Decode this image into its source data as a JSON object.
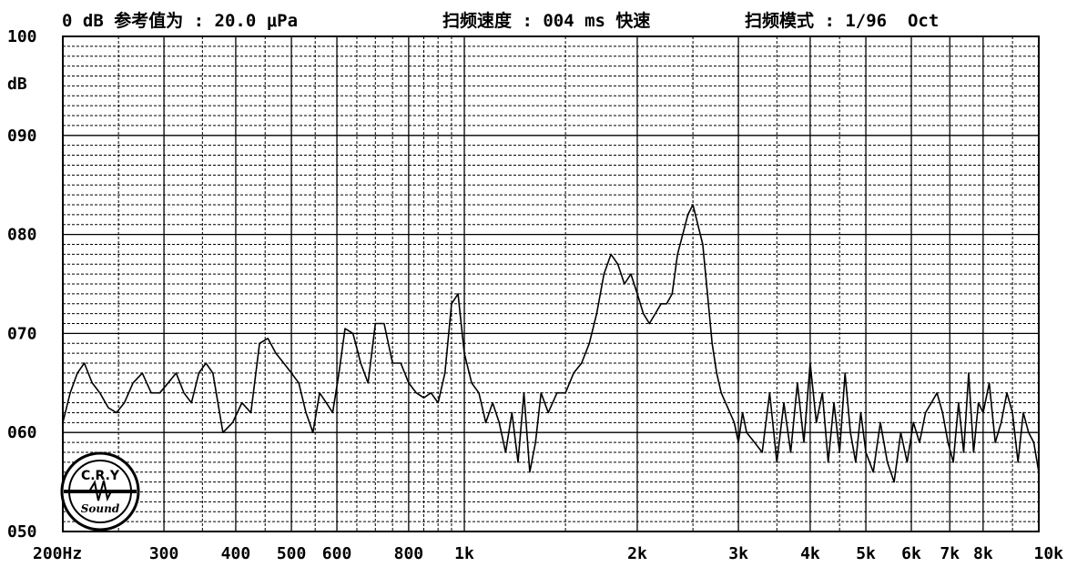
{
  "header": {
    "reference": "0 dB 参考值为 : 20.0 μPa",
    "sweep_speed": "扫频速度 : 004 ms 快速",
    "sweep_mode": "扫频模式 : 1/96  Oct"
  },
  "logo": {
    "top_text": "C.R.Y",
    "bottom_text": "Sound"
  },
  "colors": {
    "line": "#000000",
    "background": "#ffffff"
  },
  "chart_data": {
    "type": "line",
    "ylabel": "dB",
    "ylim": [
      50,
      100
    ],
    "y_ticks": [
      {
        "value": 100,
        "label": "100"
      },
      {
        "value": 90,
        "label": "090"
      },
      {
        "value": 80,
        "label": "080"
      },
      {
        "value": 70,
        "label": "070"
      },
      {
        "value": 60,
        "label": "060"
      },
      {
        "value": 50,
        "label": "050"
      }
    ],
    "x_scale": "log",
    "xlim": [
      200,
      10000
    ],
    "x_ticks": [
      {
        "value": 200,
        "label": "200Hz"
      },
      {
        "value": 300,
        "label": "300"
      },
      {
        "value": 400,
        "label": "400"
      },
      {
        "value": 500,
        "label": "500"
      },
      {
        "value": 600,
        "label": "600"
      },
      {
        "value": 800,
        "label": "800"
      },
      {
        "value": 1000,
        "label": "1k"
      },
      {
        "value": 2000,
        "label": "2k"
      },
      {
        "value": 3000,
        "label": "3k"
      },
      {
        "value": 4000,
        "label": "4k"
      },
      {
        "value": 5000,
        "label": "5k"
      },
      {
        "value": 6000,
        "label": "6k"
      },
      {
        "value": 7000,
        "label": "7k"
      },
      {
        "value": 8000,
        "label": "8k"
      },
      {
        "value": 10000,
        "label": "10k"
      }
    ],
    "grid": true,
    "series": [
      {
        "x": [
          200,
          206,
          212,
          218,
          225,
          232,
          240,
          248,
          256,
          265,
          275,
          285,
          295,
          305,
          315,
          325,
          335,
          345,
          355,
          365,
          380,
          395,
          410,
          425,
          440,
          455,
          470,
          485,
          500,
          515,
          530,
          545,
          560,
          575,
          590,
          605,
          620,
          640,
          660,
          680,
          700,
          725,
          750,
          775,
          800,
          825,
          850,
          875,
          900,
          925,
          950,
          975,
          1000,
          1030,
          1060,
          1090,
          1120,
          1150,
          1180,
          1210,
          1240,
          1270,
          1300,
          1330,
          1360,
          1400,
          1450,
          1500,
          1550,
          1600,
          1650,
          1700,
          1750,
          1800,
          1850,
          1900,
          1950,
          2000,
          2050,
          2100,
          2150,
          2200,
          2250,
          2300,
          2350,
          2400,
          2450,
          2500,
          2550,
          2600,
          2650,
          2700,
          2750,
          2800,
          2850,
          2900,
          2950,
          3000,
          3050,
          3100,
          3200,
          3300,
          3400,
          3500,
          3600,
          3700,
          3800,
          3900,
          4000,
          4100,
          4200,
          4300,
          4400,
          4500,
          4600,
          4700,
          4800,
          4900,
          5000,
          5150,
          5300,
          5450,
          5600,
          5750,
          5900,
          6050,
          6200,
          6350,
          6500,
          6650,
          6800,
          6950,
          7100,
          7250,
          7400,
          7550,
          7700,
          7850,
          8000,
          8200,
          8400,
          8600,
          8800,
          9000,
          9200,
          9400,
          9600,
          9800,
          10000
        ],
        "y": [
          61,
          64,
          66,
          67,
          65,
          64,
          62.5,
          62,
          63,
          65,
          66,
          64,
          64,
          65,
          66,
          64,
          63,
          66,
          67,
          66,
          60,
          61,
          63,
          62,
          69,
          69.5,
          68,
          67,
          66,
          65,
          62,
          60,
          64,
          63,
          62,
          66,
          70.5,
          70,
          67,
          65,
          71,
          71,
          67,
          67,
          65,
          64,
          63.5,
          64,
          63,
          66,
          73,
          74,
          68,
          65,
          64,
          61,
          63,
          61,
          58,
          62,
          57,
          64,
          56,
          59,
          64,
          62,
          64,
          64,
          66,
          67,
          69,
          72,
          76,
          78,
          77,
          75,
          76,
          74,
          72,
          71,
          72,
          73,
          73,
          74,
          78,
          80,
          82,
          83,
          81,
          79,
          74,
          69,
          66,
          64,
          63,
          62,
          61,
          59,
          62,
          60,
          59,
          58,
          64,
          57,
          63,
          58,
          65,
          59,
          67,
          61,
          64,
          57,
          63,
          58,
          66,
          60,
          57,
          62,
          58,
          56,
          61,
          57,
          55,
          60,
          57,
          61,
          59,
          62,
          63,
          64,
          62,
          59,
          57,
          63,
          58,
          66,
          58,
          63,
          62,
          65,
          59,
          61,
          64,
          62,
          57,
          62,
          60,
          59,
          56
        ]
      }
    ]
  }
}
